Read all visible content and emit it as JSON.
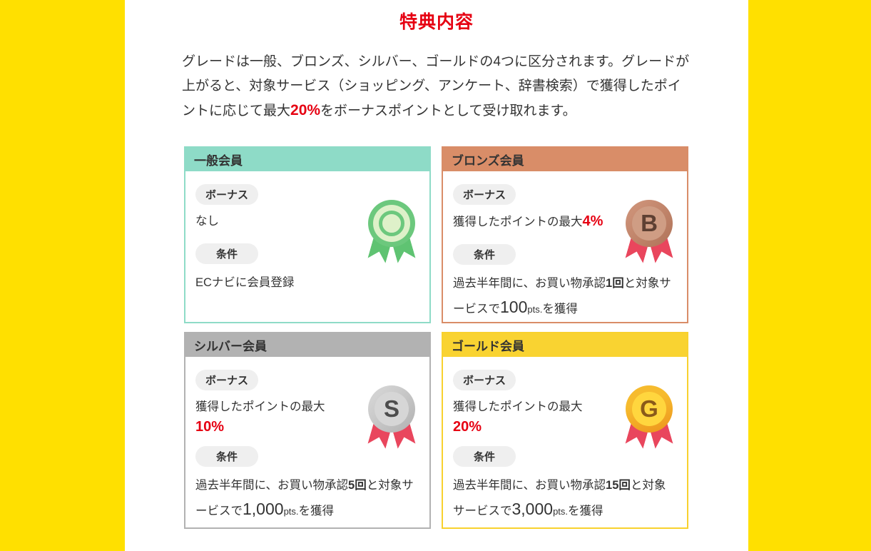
{
  "header": {
    "title": "特典内容"
  },
  "description": {
    "text_before": "グレードは一般、ブロンズ、シルバー、ゴールドの4つに区分されます。グレードが上がると、対象サービス（ショッピング、アンケート、辞書検索）で獲得したポイントに応じて最大",
    "highlight": "20%",
    "text_after": "をボーナスポイントとして受け取れます。"
  },
  "colors": {
    "accent_red": "#e60012",
    "side_band_yellow": "#ffe000",
    "general_theme": "#8edbc7",
    "bronze_theme": "#d98d68",
    "silver_theme": "#b2b2b2",
    "gold_theme": "#f9d331",
    "ribbon_crimson": "#e9465d",
    "ribbon_green": "#5fc372",
    "badge_gray": "#efefef"
  },
  "cards": [
    {
      "title": "一般会員",
      "bonus_label": "ボーナス",
      "bonus_text": "なし",
      "condition_label": "条件",
      "condition_text": "ECナビに会員登録",
      "medal": "green-rosette-medal"
    },
    {
      "title": "ブロンズ会員",
      "bonus_label": "ボーナス",
      "bonus_prefix": "獲得したポイントの最大",
      "bonus_value": "4%",
      "condition_label": "条件",
      "condition_pre": "過去半年間に、お買い物承認",
      "condition_count": "1回",
      "condition_mid": "と対象サービスで",
      "condition_points": "100",
      "condition_unit": "pts.",
      "condition_post": "を獲得",
      "medal_letter": "B"
    },
    {
      "title": "シルバー会員",
      "bonus_label": "ボーナス",
      "bonus_prefix": "獲得したポイントの最大",
      "bonus_value": "10%",
      "condition_label": "条件",
      "condition_pre": "過去半年間に、お買い物承認",
      "condition_count": "5回",
      "condition_mid": "と対象サービスで",
      "condition_points": "1,000",
      "condition_unit": "pts.",
      "condition_post": "を獲得",
      "medal_letter": "S"
    },
    {
      "title": "ゴールド会員",
      "bonus_label": "ボーナス",
      "bonus_prefix": "獲得したポイントの最大",
      "bonus_value": "20%",
      "condition_label": "条件",
      "condition_pre": "過去半年間に、お買い物承認",
      "condition_count": "15回",
      "condition_mid": "と対象サービスで",
      "condition_points": "3,000",
      "condition_unit": "pts.",
      "condition_post": "を獲得",
      "medal_letter": "G"
    }
  ]
}
